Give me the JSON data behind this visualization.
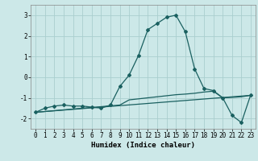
{
  "xlabel": "Humidex (Indice chaleur)",
  "bg_color": "#cce8e8",
  "grid_color": "#aacece",
  "line_color": "#1a6060",
  "xlim": [
    -0.5,
    23.5
  ],
  "ylim": [
    -2.5,
    3.5
  ],
  "yticks": [
    -2,
    -1,
    0,
    1,
    2,
    3
  ],
  "xticks": [
    0,
    1,
    2,
    3,
    4,
    5,
    6,
    7,
    8,
    9,
    10,
    11,
    12,
    13,
    14,
    15,
    16,
    17,
    18,
    19,
    20,
    21,
    22,
    23
  ],
  "curve1_x": [
    0,
    1,
    2,
    3,
    4,
    5,
    6,
    7,
    8,
    9,
    10,
    11,
    12,
    13,
    14,
    15,
    16,
    17,
    18,
    19,
    20,
    21,
    22,
    23
  ],
  "curve1_y": [
    -1.7,
    -1.5,
    -1.4,
    -1.35,
    -1.4,
    -1.4,
    -1.45,
    -1.5,
    -1.35,
    -0.45,
    0.1,
    1.05,
    2.3,
    2.6,
    2.9,
    3.0,
    2.2,
    0.4,
    -0.55,
    -0.65,
    -1.0,
    -1.85,
    -2.2,
    -0.85
  ],
  "curve2_x": [
    0,
    9,
    10,
    11,
    12,
    13,
    14,
    15,
    16,
    17,
    18,
    19,
    20,
    21,
    22,
    23
  ],
  "curve2_y": [
    -1.7,
    -1.35,
    -1.1,
    -1.05,
    -1.0,
    -0.95,
    -0.9,
    -0.85,
    -0.82,
    -0.78,
    -0.72,
    -0.68,
    -1.0,
    -0.98,
    -0.95,
    -0.88
  ],
  "curve3_x": [
    0,
    23
  ],
  "curve3_y": [
    -1.7,
    -0.88
  ]
}
